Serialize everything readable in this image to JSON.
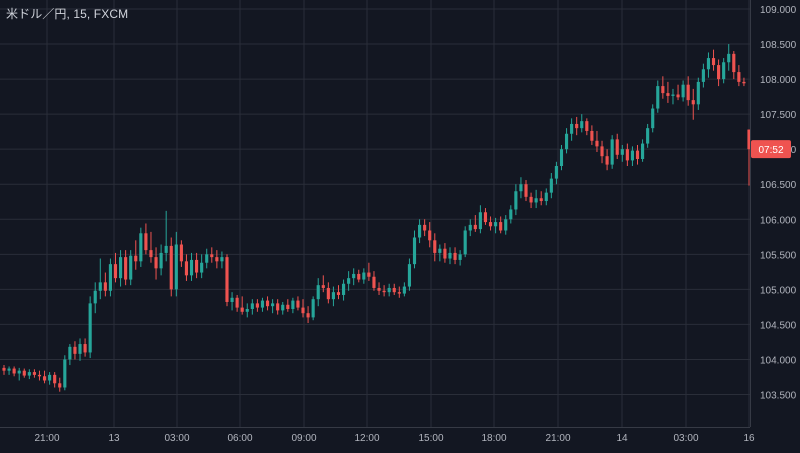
{
  "chart_title": "米ドル／円, 15, FXCM",
  "colors": {
    "background": "#131722",
    "grid": "#2a2e39",
    "text": "#b2b5be",
    "up": "#26a69a",
    "down": "#ef5350"
  },
  "chart_data": {
    "type": "candlestick",
    "title": "米ドル／円, 15, FXCM",
    "symbol": "米ドル／円",
    "interval": "15",
    "source": "FXCM",
    "ylim": [
      103.2,
      109.1
    ],
    "y_ticks": [
      "109.000",
      "108.500",
      "108.000",
      "107.500",
      "107.000",
      "106.500",
      "106.000",
      "105.500",
      "105.000",
      "104.500",
      "104.000",
      "103.500"
    ],
    "x_ticks": [
      "21:00",
      "13",
      "03:00",
      "06:00",
      "09:00",
      "12:00",
      "15:00",
      "18:00",
      "21:00",
      "14",
      "03:00",
      "16"
    ],
    "grid": true,
    "countdown_label": "07:52",
    "last_price": 107.0,
    "candles": [
      [
        103.88,
        103.92,
        103.78,
        103.84
      ],
      [
        103.84,
        103.9,
        103.78,
        103.87
      ],
      [
        103.87,
        103.9,
        103.76,
        103.8
      ],
      [
        103.8,
        103.88,
        103.7,
        103.84
      ],
      [
        103.84,
        103.87,
        103.74,
        103.77
      ],
      [
        103.77,
        103.86,
        103.72,
        103.82
      ],
      [
        103.82,
        103.86,
        103.74,
        103.78
      ],
      [
        103.78,
        103.84,
        103.7,
        103.76
      ],
      [
        103.76,
        103.84,
        103.66,
        103.7
      ],
      [
        103.7,
        103.82,
        103.64,
        103.78
      ],
      [
        103.78,
        103.82,
        103.6,
        103.66
      ],
      [
        103.66,
        103.74,
        103.54,
        103.6
      ],
      [
        103.6,
        104.06,
        103.56,
        104.0
      ],
      [
        104.0,
        104.22,
        103.92,
        104.18
      ],
      [
        104.18,
        104.26,
        104.0,
        104.08
      ],
      [
        104.08,
        104.3,
        103.98,
        104.22
      ],
      [
        104.22,
        104.3,
        104.04,
        104.1
      ],
      [
        104.1,
        104.9,
        104.02,
        104.8
      ],
      [
        104.8,
        105.1,
        104.66,
        104.98
      ],
      [
        104.98,
        105.44,
        104.86,
        105.1
      ],
      [
        105.1,
        105.24,
        104.9,
        104.98
      ],
      [
        104.98,
        105.44,
        104.9,
        105.36
      ],
      [
        105.36,
        105.52,
        105.1,
        105.16
      ],
      [
        105.16,
        105.56,
        105.04,
        105.46
      ],
      [
        105.46,
        105.56,
        105.06,
        105.14
      ],
      [
        105.14,
        105.56,
        105.06,
        105.48
      ],
      [
        105.48,
        105.7,
        105.28,
        105.4
      ],
      [
        105.4,
        105.88,
        105.32,
        105.8
      ],
      [
        105.8,
        105.94,
        105.5,
        105.56
      ],
      [
        105.56,
        105.82,
        105.38,
        105.46
      ],
      [
        105.46,
        105.6,
        105.14,
        105.3
      ],
      [
        105.3,
        105.64,
        105.2,
        105.52
      ],
      [
        105.52,
        106.12,
        105.4,
        105.62
      ],
      [
        105.62,
        105.74,
        104.9,
        105.0
      ],
      [
        105.0,
        105.82,
        104.9,
        105.64
      ],
      [
        105.64,
        105.7,
        105.32,
        105.4
      ],
      [
        105.4,
        105.5,
        105.12,
        105.2
      ],
      [
        105.2,
        105.52,
        105.12,
        105.42
      ],
      [
        105.42,
        105.52,
        105.16,
        105.24
      ],
      [
        105.24,
        105.5,
        105.16,
        105.38
      ],
      [
        105.38,
        105.58,
        105.3,
        105.5
      ],
      [
        105.5,
        105.6,
        105.38,
        105.46
      ],
      [
        105.46,
        105.56,
        105.3,
        105.4
      ],
      [
        105.4,
        105.54,
        105.3,
        105.46
      ],
      [
        105.46,
        105.5,
        104.76,
        104.82
      ],
      [
        104.82,
        104.96,
        104.7,
        104.88
      ],
      [
        104.88,
        104.92,
        104.68,
        104.74
      ],
      [
        104.74,
        104.9,
        104.64,
        104.68
      ],
      [
        104.68,
        104.8,
        104.6,
        104.72
      ],
      [
        104.72,
        104.86,
        104.64,
        104.8
      ],
      [
        104.8,
        104.86,
        104.68,
        104.74
      ],
      [
        104.74,
        104.88,
        104.68,
        104.84
      ],
      [
        104.84,
        104.9,
        104.7,
        104.76
      ],
      [
        104.76,
        104.86,
        104.66,
        104.8
      ],
      [
        104.8,
        104.86,
        104.64,
        104.7
      ],
      [
        104.7,
        104.82,
        104.64,
        104.78
      ],
      [
        104.78,
        104.86,
        104.68,
        104.72
      ],
      [
        104.72,
        104.88,
        104.66,
        104.84
      ],
      [
        104.84,
        104.9,
        104.7,
        104.74
      ],
      [
        104.74,
        104.86,
        104.6,
        104.66
      ],
      [
        104.66,
        104.76,
        104.52,
        104.6
      ],
      [
        104.6,
        104.9,
        104.56,
        104.86
      ],
      [
        104.86,
        105.16,
        104.76,
        105.06
      ],
      [
        105.06,
        105.2,
        104.96,
        105.02
      ],
      [
        105.02,
        105.1,
        104.8,
        104.86
      ],
      [
        104.86,
        105.04,
        104.76,
        104.96
      ],
      [
        104.96,
        105.06,
        104.86,
        104.92
      ],
      [
        104.92,
        105.14,
        104.84,
        105.08
      ],
      [
        105.08,
        105.26,
        104.98,
        105.16
      ],
      [
        105.16,
        105.3,
        105.06,
        105.22
      ],
      [
        105.22,
        105.28,
        105.1,
        105.14
      ],
      [
        105.14,
        105.3,
        105.08,
        105.24
      ],
      [
        105.24,
        105.38,
        105.12,
        105.18
      ],
      [
        105.18,
        105.26,
        104.98,
        105.02
      ],
      [
        105.02,
        105.1,
        104.92,
        104.98
      ],
      [
        104.98,
        105.06,
        104.9,
        104.96
      ],
      [
        104.96,
        105.08,
        104.9,
        105.02
      ],
      [
        105.02,
        105.08,
        104.92,
        104.96
      ],
      [
        104.96,
        105.04,
        104.88,
        104.94
      ],
      [
        104.94,
        105.1,
        104.9,
        105.04
      ],
      [
        105.04,
        105.44,
        104.98,
        105.36
      ],
      [
        105.36,
        105.84,
        105.3,
        105.74
      ],
      [
        105.74,
        106.0,
        105.66,
        105.92
      ],
      [
        105.92,
        106.0,
        105.76,
        105.84
      ],
      [
        105.84,
        105.96,
        105.6,
        105.7
      ],
      [
        105.7,
        105.8,
        105.4,
        105.52
      ],
      [
        105.52,
        105.64,
        105.4,
        105.58
      ],
      [
        105.58,
        105.66,
        105.38,
        105.44
      ],
      [
        105.44,
        105.6,
        105.36,
        105.52
      ],
      [
        105.52,
        105.6,
        105.36,
        105.42
      ],
      [
        105.42,
        105.56,
        105.34,
        105.5
      ],
      [
        105.5,
        105.9,
        105.46,
        105.84
      ],
      [
        105.84,
        106.0,
        105.76,
        105.92
      ],
      [
        105.92,
        106.06,
        105.82,
        105.86
      ],
      [
        105.86,
        106.2,
        105.8,
        106.1
      ],
      [
        106.1,
        106.16,
        105.92,
        105.96
      ],
      [
        105.96,
        106.04,
        105.84,
        105.9
      ],
      [
        105.9,
        106.02,
        105.8,
        105.96
      ],
      [
        105.96,
        106.04,
        105.8,
        105.84
      ],
      [
        105.84,
        106.06,
        105.78,
        106.0
      ],
      [
        106.0,
        106.2,
        105.94,
        106.14
      ],
      [
        106.14,
        106.5,
        106.06,
        106.4
      ],
      [
        106.4,
        106.6,
        106.3,
        106.5
      ],
      [
        106.5,
        106.56,
        106.26,
        106.32
      ],
      [
        106.32,
        106.38,
        106.16,
        106.24
      ],
      [
        106.24,
        106.42,
        106.16,
        106.3
      ],
      [
        106.3,
        106.4,
        106.2,
        106.26
      ],
      [
        106.26,
        106.44,
        106.2,
        106.38
      ],
      [
        106.38,
        106.66,
        106.3,
        106.58
      ],
      [
        106.58,
        106.82,
        106.5,
        106.76
      ],
      [
        106.76,
        107.06,
        106.7,
        107.0
      ],
      [
        107.0,
        107.3,
        106.94,
        107.22
      ],
      [
        107.22,
        107.44,
        107.12,
        107.36
      ],
      [
        107.36,
        107.46,
        107.2,
        107.3
      ],
      [
        107.3,
        107.5,
        107.24,
        107.4
      ],
      [
        107.4,
        107.44,
        107.2,
        107.26
      ],
      [
        107.26,
        107.34,
        107.06,
        107.12
      ],
      [
        107.12,
        107.26,
        106.96,
        107.04
      ],
      [
        107.04,
        107.12,
        106.8,
        106.9
      ],
      [
        106.9,
        107.0,
        106.7,
        106.78
      ],
      [
        106.78,
        107.2,
        106.72,
        107.14
      ],
      [
        107.14,
        107.22,
        106.86,
        106.92
      ],
      [
        106.92,
        107.06,
        106.82,
        107.0
      ],
      [
        107.0,
        107.08,
        106.76,
        106.84
      ],
      [
        106.84,
        107.04,
        106.76,
        106.98
      ],
      [
        106.98,
        107.06,
        106.78,
        106.86
      ],
      [
        106.86,
        107.14,
        106.82,
        107.08
      ],
      [
        107.08,
        107.36,
        107.02,
        107.3
      ],
      [
        107.3,
        107.64,
        107.24,
        107.58
      ],
      [
        107.58,
        107.98,
        107.52,
        107.9
      ],
      [
        107.9,
        108.04,
        107.72,
        107.8
      ],
      [
        107.8,
        107.96,
        107.66,
        107.76
      ],
      [
        107.76,
        107.86,
        107.64,
        107.78
      ],
      [
        107.78,
        107.92,
        107.7,
        107.74
      ],
      [
        107.74,
        107.98,
        107.68,
        107.92
      ],
      [
        107.92,
        108.04,
        107.62,
        107.7
      ],
      [
        107.7,
        107.86,
        107.42,
        107.64
      ],
      [
        107.64,
        108.02,
        107.56,
        107.96
      ],
      [
        107.96,
        108.22,
        107.88,
        108.14
      ],
      [
        108.14,
        108.38,
        108.02,
        108.3
      ],
      [
        108.3,
        108.42,
        108.12,
        108.2
      ],
      [
        108.2,
        108.28,
        107.9,
        108.0
      ],
      [
        108.0,
        108.3,
        107.94,
        108.24
      ],
      [
        108.24,
        108.5,
        108.12,
        108.36
      ],
      [
        108.36,
        108.4,
        108.0,
        108.1
      ],
      [
        108.1,
        108.2,
        107.9,
        107.96
      ],
      [
        107.96,
        108.02,
        107.9,
        107.94
      ],
      [
        107.28,
        107.28,
        106.48,
        107.0
      ]
    ]
  }
}
